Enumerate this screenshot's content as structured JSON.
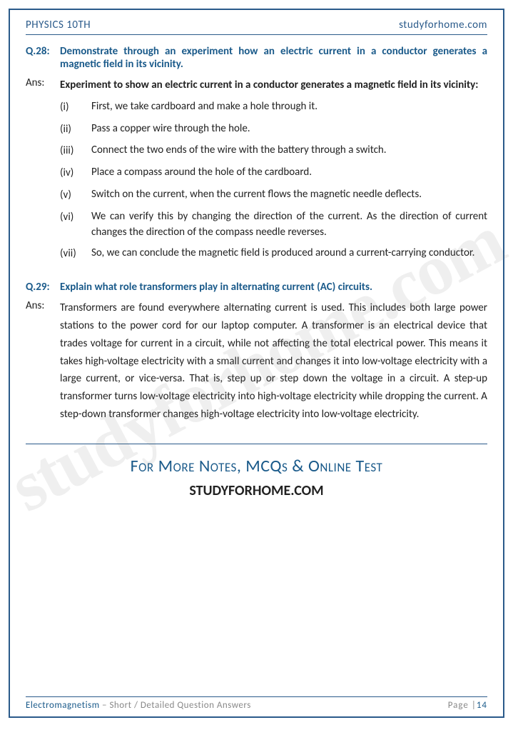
{
  "header": {
    "left": "PHYSICS 10TH",
    "right": "studyforhome.com"
  },
  "watermark": "studyforhome.com",
  "q28": {
    "num": "Q.28:",
    "question": "Demonstrate through an experiment how an electric current in a conductor generates a magnetic field in its vicinity.",
    "ans_label": "Ans:",
    "intro": "Experiment to show an electric current in a conductor generates a magnetic field in its vicinity:",
    "steps": [
      {
        "n": "(i)",
        "t": "First, we take cardboard and make a hole through it."
      },
      {
        "n": "(ii)",
        "t": "Pass a copper wire through the hole."
      },
      {
        "n": "(iii)",
        "t": "Connect the two ends of the wire with the battery through a switch."
      },
      {
        "n": "(iv)",
        "t": "Place a compass around the hole of the cardboard."
      },
      {
        "n": "(v)",
        "t": "Switch on the current, when the current flows the magnetic needle deflects."
      },
      {
        "n": "(vi)",
        "t": "We can verify this by changing the direction of the current. As the direction of current changes the direction of the compass needle reverses."
      },
      {
        "n": "(vii)",
        "t": "So, we can conclude the magnetic field is produced around a current-carrying conductor."
      }
    ]
  },
  "q29": {
    "num": "Q.29:",
    "question": "Explain what role transformers play in alternating current (AC) circuits.",
    "ans_label": "Ans:",
    "answer": "Transformers are found everywhere alternating current is used. This includes both large power stations to the power cord for our laptop computer. A transformer is an electrical device that trades voltage for current in a circuit, while not affecting the total electrical power. This means it takes high-voltage electricity with a small current and changes it into low-voltage electricity with a large current, or vice-versa. That is, step up or step down the voltage in a circuit. A step-up transformer turns low-voltage electricity into high-voltage electricity while dropping the current. A step-down transformer changes high-voltage electricity into low-voltage electricity."
  },
  "promo": {
    "line1": "For More Notes, MCQs & Online Test",
    "line2": "STUDYFORHOME.COM"
  },
  "footer": {
    "topic": "Electromagnetism",
    "sub": " – Short / Detailed Question Answers",
    "page_label": "Page |",
    "page_num": "14"
  }
}
